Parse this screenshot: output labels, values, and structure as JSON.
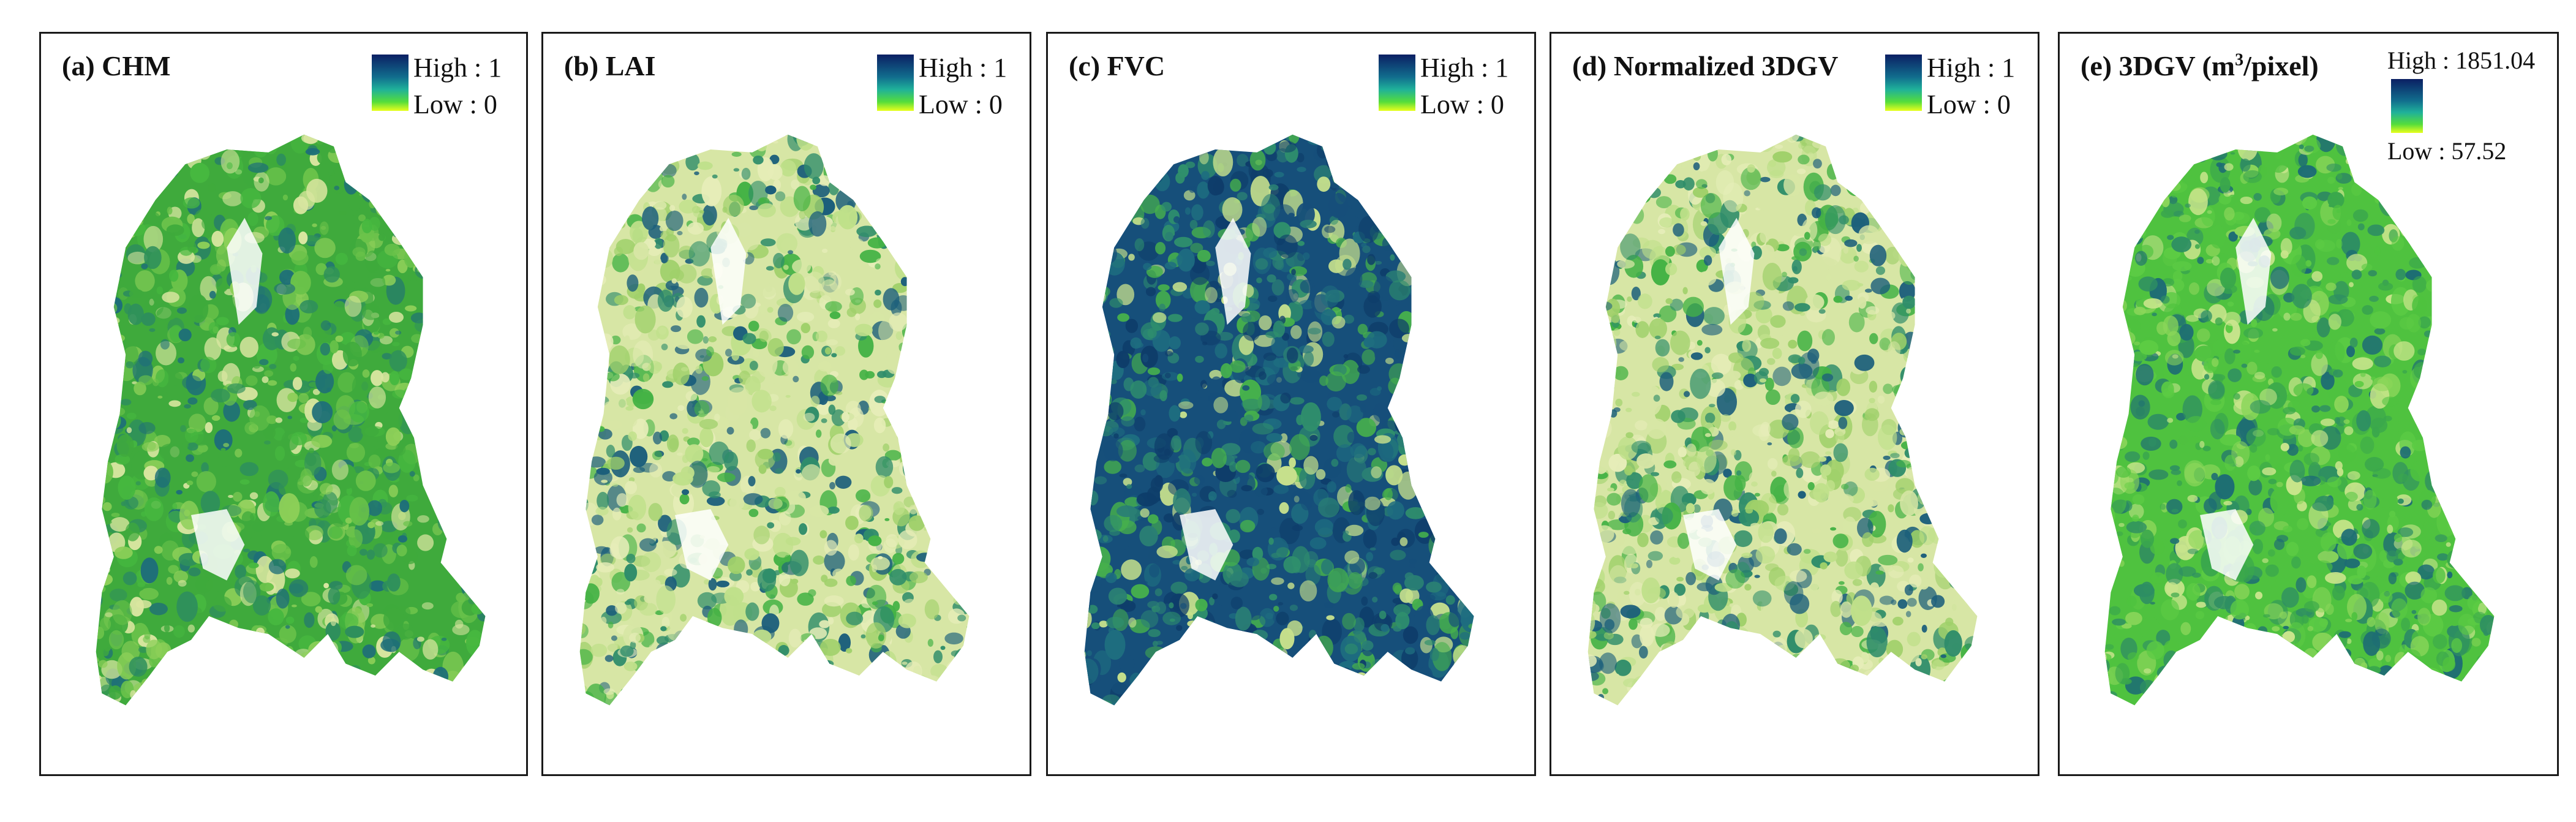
{
  "panels": [
    {
      "id": "a",
      "title": "(a) CHM",
      "high": "High : 1",
      "low": "Low : 0",
      "style": "green",
      "legend": "side"
    },
    {
      "id": "b",
      "title": "(b) LAI",
      "high": "High : 1",
      "low": "Low : 0",
      "style": "light",
      "legend": "side"
    },
    {
      "id": "c",
      "title": "(c) FVC",
      "high": "High : 1",
      "low": "Low : 0",
      "style": "dark",
      "legend": "side"
    },
    {
      "id": "d",
      "title": "(d) Normalized 3DGV",
      "high": "High : 1",
      "low": "Low : 0",
      "style": "light",
      "legend": "side"
    },
    {
      "id": "e",
      "title_main": "(e) 3DGV (m",
      "title_sup": "3",
      "title_tail": "/pixel)",
      "high": "High : 1851.04",
      "low": "Low : 57.52",
      "style": "bright",
      "legend": "stack"
    }
  ],
  "colors": {
    "ramp_high": "#0b1f63",
    "ramp_mid": "#1fb19a",
    "ramp_low": "#e9ff1d",
    "veg_dark": "#164f7a",
    "veg_mid": "#2f9f72",
    "veg_green": "#42b73e",
    "veg_light": "#e6edb0"
  }
}
